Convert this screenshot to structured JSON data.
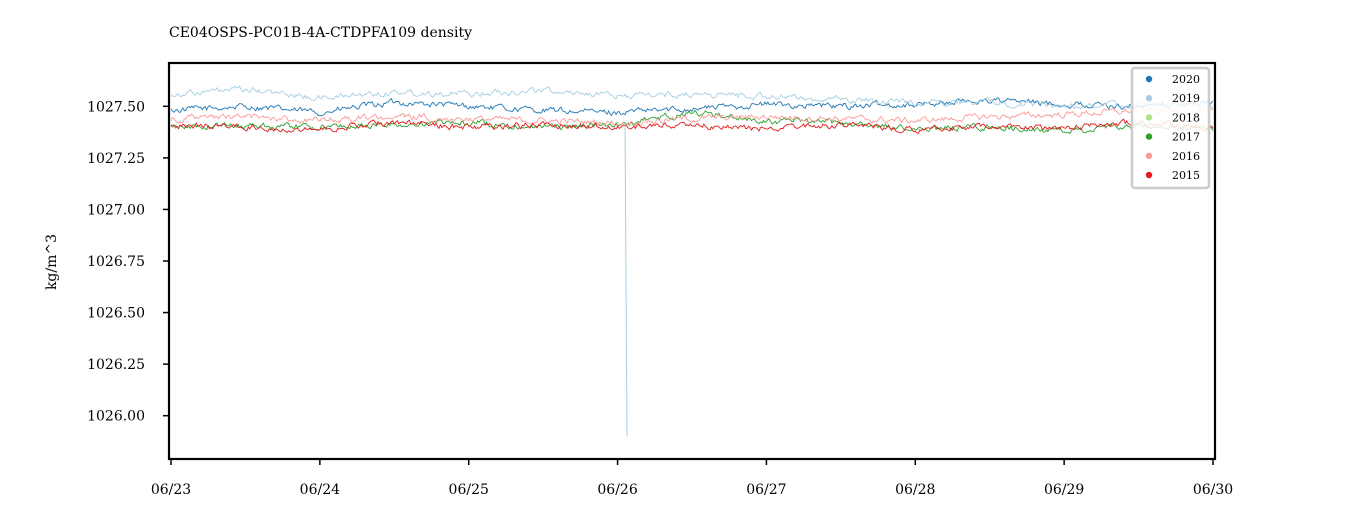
{
  "chart_data": {
    "type": "line",
    "title": "CE04OSPS-PC01B-4A-CTDPFA109 density",
    "xlabel": "",
    "ylabel": "kg/m^3",
    "x_tick_labels": [
      "06/23",
      "06/24",
      "06/25",
      "06/26",
      "06/27",
      "06/28",
      "06/29",
      "06/30"
    ],
    "y_ticks": [
      1026.0,
      1026.25,
      1026.5,
      1026.75,
      1027.0,
      1027.25,
      1027.5
    ],
    "y_tick_labels": [
      "1026.00",
      "1026.25",
      "1026.50",
      "1026.75",
      "1027.00",
      "1027.25",
      "1027.50"
    ],
    "xlim": [
      0,
      7
    ],
    "ylim": [
      1025.79,
      1027.71
    ],
    "grid": false,
    "legend_position": "top-right",
    "series": [
      {
        "name": "2020",
        "color": "#1f77b4",
        "x": [
          0,
          0.5,
          1,
          1.5,
          2,
          2.5,
          3,
          3.5,
          4,
          4.5,
          5,
          5.5,
          6,
          6.5,
          7
        ],
        "values": [
          1027.48,
          1027.5,
          1027.47,
          1027.52,
          1027.5,
          1027.48,
          1027.47,
          1027.49,
          1027.51,
          1027.5,
          1027.51,
          1027.53,
          1027.51,
          1027.5,
          1027.52
        ]
      },
      {
        "name": "2019",
        "color": "#a6cee3",
        "x": [
          0,
          0.5,
          1,
          1.5,
          2,
          2.5,
          3,
          3.5,
          4,
          4.5,
          5,
          5.5,
          6,
          6.5,
          7
        ],
        "values": [
          1027.56,
          1027.58,
          1027.54,
          1027.57,
          1027.56,
          1027.58,
          1027.55,
          1027.56,
          1027.55,
          1027.53,
          1027.52,
          1027.52,
          1027.5,
          1027.51,
          1027.5
        ]
      },
      {
        "name": "2018",
        "color": "#b2df8a",
        "x": [],
        "values": []
      },
      {
        "name": "2017",
        "color": "#2ca02c",
        "x": [
          0,
          0.5,
          1,
          1.5,
          2,
          2.5,
          3,
          3.5,
          4,
          4.5,
          5,
          5.5,
          6,
          6.5,
          7
        ],
        "values": [
          1027.4,
          1027.41,
          1027.4,
          1027.41,
          1027.42,
          1027.4,
          1027.41,
          1027.47,
          1027.43,
          1027.42,
          1027.39,
          1027.4,
          1027.38,
          1027.4,
          1027.39
        ]
      },
      {
        "name": "2016",
        "color": "#fb9a99",
        "x": [
          0,
          0.5,
          1,
          1.5,
          2,
          2.5,
          3,
          3.5,
          4,
          4.5,
          5,
          5.5,
          6,
          6.5,
          7
        ],
        "values": [
          1027.44,
          1027.45,
          1027.43,
          1027.45,
          1027.44,
          1027.43,
          1027.42,
          1027.44,
          1027.45,
          1027.44,
          1027.43,
          1027.45,
          1027.46,
          1027.48,
          1027.47
        ]
      },
      {
        "name": "2015",
        "color": "#e31a1c",
        "x": [
          0,
          0.5,
          1,
          1.5,
          2,
          2.5,
          3,
          3.5,
          4,
          4.5,
          5,
          5.5,
          6,
          6.5,
          7
        ],
        "values": [
          1027.41,
          1027.4,
          1027.39,
          1027.42,
          1027.4,
          1027.41,
          1027.4,
          1027.41,
          1027.39,
          1027.41,
          1027.39,
          1027.4,
          1027.4,
          1027.42,
          1027.4
        ]
      }
    ],
    "annotations": [
      {
        "series": "2019",
        "x": 3.05,
        "y_from": 1027.42,
        "y_to": 1025.9
      }
    ]
  }
}
